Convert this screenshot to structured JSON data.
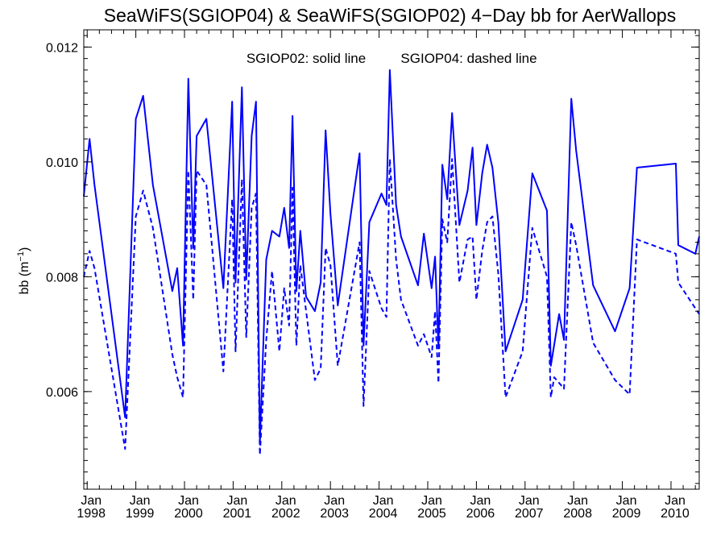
{
  "chart_data": {
    "type": "line",
    "title": "SeaWiFS(SGIOP04) & SeaWiFS(SGIOP02) 4−Day bb for AerWallops",
    "annotation_left": "SGIOP02: solid line",
    "annotation_right": "SGIOP04: dashed line",
    "ylabel": "bb (m",
    "ylabel_superscript": "−1",
    "ylabel_close": ")",
    "ylim": [
      0.0043,
      0.0123
    ],
    "xlim": [
      1997.93,
      2010.58
    ],
    "yticks": [
      0.006,
      0.008,
      0.01,
      0.012
    ],
    "ytick_labels": [
      "0.006",
      "0.008",
      "0.010",
      "0.012"
    ],
    "xticks": [
      {
        "x": 1998,
        "month": "Jan",
        "year": "1998"
      },
      {
        "x": 1999,
        "month": "Jan",
        "year": "1999"
      },
      {
        "x": 2000,
        "month": "Jan",
        "year": "2000"
      },
      {
        "x": 2001,
        "month": "Jan",
        "year": "2001"
      },
      {
        "x": 2002,
        "month": "Jan",
        "year": "2002"
      },
      {
        "x": 2003,
        "month": "Jan",
        "year": "2003"
      },
      {
        "x": 2004,
        "month": "Jan",
        "year": "2004"
      },
      {
        "x": 2005,
        "month": "Jan",
        "year": "2005"
      },
      {
        "x": 2006,
        "month": "Jan",
        "year": "2006"
      },
      {
        "x": 2007,
        "month": "Jan",
        "year": "2007"
      },
      {
        "x": 2008,
        "month": "Jan",
        "year": "2008"
      },
      {
        "x": 2009,
        "month": "Jan",
        "year": "2009"
      },
      {
        "x": 2010,
        "month": "Jan",
        "year": "2010"
      }
    ],
    "grid": false,
    "line_color": "#0000ff",
    "series": [
      {
        "name": "SGIOP02",
        "style": "solid",
        "points": [
          [
            1997.93,
            0.0094
          ],
          [
            1998.05,
            0.0104
          ],
          [
            1998.15,
            0.0096
          ],
          [
            1998.78,
            0.00555
          ],
          [
            1999.0,
            0.01075
          ],
          [
            1999.15,
            0.01115
          ],
          [
            1999.35,
            0.0096
          ],
          [
            1999.75,
            0.00775
          ],
          [
            1999.85,
            0.00815
          ],
          [
            1999.97,
            0.0068
          ],
          [
            2000.08,
            0.01145
          ],
          [
            2000.18,
            0.0085
          ],
          [
            2000.25,
            0.01045
          ],
          [
            2000.45,
            0.01075
          ],
          [
            2000.8,
            0.0078
          ],
          [
            2000.98,
            0.01105
          ],
          [
            2001.05,
            0.0079
          ],
          [
            2001.18,
            0.0113
          ],
          [
            2001.27,
            0.00795
          ],
          [
            2001.38,
            0.01045
          ],
          [
            2001.47,
            0.01105
          ],
          [
            2001.55,
            0.0051
          ],
          [
            2001.68,
            0.0083
          ],
          [
            2001.8,
            0.0088
          ],
          [
            2001.95,
            0.0087
          ],
          [
            2002.05,
            0.0092
          ],
          [
            2002.15,
            0.0085
          ],
          [
            2002.22,
            0.0108
          ],
          [
            2002.3,
            0.00775
          ],
          [
            2002.38,
            0.0088
          ],
          [
            2002.5,
            0.00765
          ],
          [
            2002.68,
            0.0074
          ],
          [
            2002.8,
            0.0079
          ],
          [
            2002.9,
            0.01055
          ],
          [
            2003.0,
            0.0091
          ],
          [
            2003.15,
            0.0075
          ],
          [
            2003.6,
            0.01015
          ],
          [
            2003.68,
            0.0068
          ],
          [
            2003.8,
            0.00895
          ],
          [
            2004.05,
            0.00945
          ],
          [
            2004.15,
            0.00925
          ],
          [
            2004.22,
            0.0116
          ],
          [
            2004.35,
            0.00925
          ],
          [
            2004.45,
            0.0087
          ],
          [
            2004.8,
            0.00785
          ],
          [
            2004.92,
            0.00875
          ],
          [
            2005.08,
            0.0078
          ],
          [
            2005.15,
            0.00835
          ],
          [
            2005.22,
            0.00675
          ],
          [
            2005.3,
            0.00995
          ],
          [
            2005.4,
            0.00935
          ],
          [
            2005.5,
            0.01085
          ],
          [
            2005.65,
            0.0089
          ],
          [
            2005.82,
            0.0095
          ],
          [
            2005.92,
            0.01025
          ],
          [
            2006.0,
            0.0089
          ],
          [
            2006.12,
            0.0098
          ],
          [
            2006.22,
            0.0103
          ],
          [
            2006.33,
            0.0099
          ],
          [
            2006.45,
            0.00895
          ],
          [
            2006.6,
            0.0067
          ],
          [
            2006.95,
            0.0076
          ],
          [
            2007.15,
            0.0098
          ],
          [
            2007.45,
            0.00915
          ],
          [
            2007.53,
            0.00645
          ],
          [
            2007.7,
            0.00735
          ],
          [
            2007.8,
            0.0069
          ],
          [
            2007.95,
            0.0111
          ],
          [
            2008.05,
            0.0102
          ],
          [
            2008.4,
            0.00785
          ],
          [
            2008.85,
            0.00705
          ],
          [
            2009.15,
            0.0078
          ],
          [
            2009.3,
            0.0099
          ],
          [
            2010.1,
            0.00997
          ],
          [
            2010.15,
            0.00855
          ],
          [
            2010.5,
            0.0084
          ],
          [
            2010.58,
            0.0087
          ]
        ]
      },
      {
        "name": "SGIOP04",
        "style": "dashed",
        "points": [
          [
            1997.93,
            0.008
          ],
          [
            1998.05,
            0.00845
          ],
          [
            1998.15,
            0.00815
          ],
          [
            1998.78,
            0.005
          ],
          [
            1999.0,
            0.00905
          ],
          [
            1999.15,
            0.0095
          ],
          [
            1999.35,
            0.00885
          ],
          [
            1999.75,
            0.00665
          ],
          [
            1999.85,
            0.00625
          ],
          [
            1999.97,
            0.0059
          ],
          [
            2000.08,
            0.00985
          ],
          [
            2000.18,
            0.0076
          ],
          [
            2000.25,
            0.00985
          ],
          [
            2000.45,
            0.0096
          ],
          [
            2000.8,
            0.00635
          ],
          [
            2000.98,
            0.00935
          ],
          [
            2001.05,
            0.0067
          ],
          [
            2001.18,
            0.0097
          ],
          [
            2001.27,
            0.00695
          ],
          [
            2001.38,
            0.0092
          ],
          [
            2001.47,
            0.00945
          ],
          [
            2001.55,
            0.0049
          ],
          [
            2001.68,
            0.0069
          ],
          [
            2001.8,
            0.0081
          ],
          [
            2001.95,
            0.0067
          ],
          [
            2002.05,
            0.0078
          ],
          [
            2002.15,
            0.00715
          ],
          [
            2002.22,
            0.00955
          ],
          [
            2002.3,
            0.0068
          ],
          [
            2002.38,
            0.0082
          ],
          [
            2002.5,
            0.0074
          ],
          [
            2002.68,
            0.0062
          ],
          [
            2002.8,
            0.0064
          ],
          [
            2002.9,
            0.0085
          ],
          [
            2003.0,
            0.0082
          ],
          [
            2003.15,
            0.00645
          ],
          [
            2003.6,
            0.0086
          ],
          [
            2003.68,
            0.00575
          ],
          [
            2003.8,
            0.0081
          ],
          [
            2004.05,
            0.00745
          ],
          [
            2004.15,
            0.0073
          ],
          [
            2004.22,
            0.01005
          ],
          [
            2004.35,
            0.0083
          ],
          [
            2004.45,
            0.0076
          ],
          [
            2004.8,
            0.0068
          ],
          [
            2004.92,
            0.007
          ],
          [
            2005.08,
            0.0066
          ],
          [
            2005.15,
            0.0074
          ],
          [
            2005.22,
            0.00615
          ],
          [
            2005.3,
            0.009
          ],
          [
            2005.4,
            0.0086
          ],
          [
            2005.5,
            0.01005
          ],
          [
            2005.65,
            0.0079
          ],
          [
            2005.82,
            0.00865
          ],
          [
            2005.92,
            0.0087
          ],
          [
            2006.0,
            0.0076
          ],
          [
            2006.12,
            0.00845
          ],
          [
            2006.22,
            0.00895
          ],
          [
            2006.33,
            0.00905
          ],
          [
            2006.45,
            0.00805
          ],
          [
            2006.6,
            0.0059
          ],
          [
            2006.95,
            0.0067
          ],
          [
            2007.15,
            0.00885
          ],
          [
            2007.45,
            0.008
          ],
          [
            2007.53,
            0.0059
          ],
          [
            2007.6,
            0.00625
          ],
          [
            2007.7,
            0.00615
          ],
          [
            2007.8,
            0.00605
          ],
          [
            2007.95,
            0.00895
          ],
          [
            2008.05,
            0.00855
          ],
          [
            2008.4,
            0.00685
          ],
          [
            2008.85,
            0.0062
          ],
          [
            2009.15,
            0.00595
          ],
          [
            2009.3,
            0.00865
          ],
          [
            2010.1,
            0.0084
          ],
          [
            2010.15,
            0.0079
          ],
          [
            2010.5,
            0.00745
          ],
          [
            2010.58,
            0.00735
          ]
        ]
      }
    ]
  }
}
